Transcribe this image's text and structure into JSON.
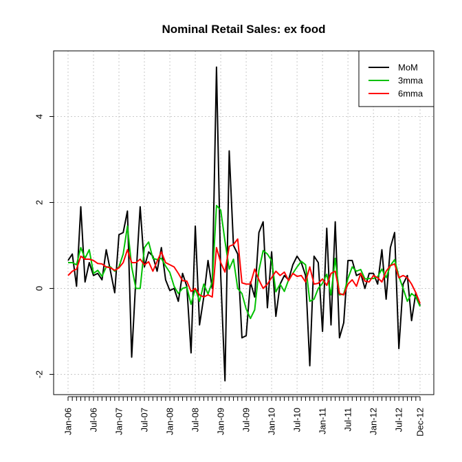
{
  "chart_data": {
    "type": "line",
    "title": "Nominal Retail Sales: ex food",
    "xlabel": "",
    "ylabel": "",
    "ylim": [
      -2.4,
      5.3
    ],
    "yticks": [
      -2,
      0,
      2,
      4
    ],
    "ytick_labels": [
      "-2",
      "0",
      "2",
      "4"
    ],
    "grid": true,
    "legend_position": "top-right",
    "x_tick_labels": [
      {
        "label": "Jan-06",
        "index": 0
      },
      {
        "label": "Jul-06",
        "index": 6
      },
      {
        "label": "Jan-07",
        "index": 12
      },
      {
        "label": "Jul-07",
        "index": 18
      },
      {
        "label": "Jan-08",
        "index": 24
      },
      {
        "label": "Jul-08",
        "index": 30
      },
      {
        "label": "Jan-09",
        "index": 36
      },
      {
        "label": "Jul-09",
        "index": 42
      },
      {
        "label": "Jan-10",
        "index": 48
      },
      {
        "label": "Jul-10",
        "index": 54
      },
      {
        "label": "Jan-11",
        "index": 60
      },
      {
        "label": "Jul-11",
        "index": 66
      },
      {
        "label": "Jan-12",
        "index": 72
      },
      {
        "label": "Jul-12",
        "index": 78
      },
      {
        "label": "Dec-12",
        "index": 83
      }
    ],
    "n_points": 84,
    "series": [
      {
        "name": "MoM",
        "color": "#000000",
        "values": [
          0.65,
          0.8,
          0.05,
          1.9,
          0.15,
          0.6,
          0.3,
          0.35,
          0.2,
          0.9,
          0.4,
          -0.1,
          1.25,
          1.3,
          1.8,
          -1.6,
          0.25,
          1.9,
          0.5,
          0.85,
          0.75,
          0.4,
          0.95,
          0.2,
          -0.05,
          0.0,
          -0.3,
          0.35,
          0.05,
          -1.5,
          1.45,
          -0.85,
          -0.2,
          0.65,
          0.0,
          5.15,
          0.3,
          -2.15,
          3.2,
          1.0,
          0.8,
          -1.15,
          -1.1,
          0.15,
          -0.2,
          1.3,
          1.55,
          -0.45,
          0.85,
          -0.65,
          0.1,
          0.3,
          0.2,
          0.55,
          0.75,
          0.6,
          0.3,
          -1.8,
          0.75,
          0.6,
          -1.0,
          1.4,
          -0.85,
          1.55,
          -1.15,
          -0.8,
          0.65,
          0.65,
          0.3,
          0.35,
          0.0,
          0.35,
          0.35,
          0.1,
          0.9,
          -0.25,
          0.95,
          1.3,
          -1.4,
          0.1,
          0.3,
          -0.75,
          -0.1,
          -0.4
        ]
      },
      {
        "name": "3mma",
        "color": "#00c000",
        "values": [
          0.6,
          0.6,
          0.55,
          0.95,
          0.7,
          0.9,
          0.35,
          0.42,
          0.28,
          0.5,
          0.5,
          0.4,
          0.5,
          0.8,
          1.45,
          0.5,
          0.0,
          0.0,
          0.95,
          1.08,
          0.7,
          0.67,
          0.7,
          0.52,
          0.37,
          0.05,
          -0.12,
          0.0,
          0.03,
          -0.37,
          0.0,
          -0.3,
          0.1,
          -0.13,
          0.15,
          1.93,
          1.82,
          1.1,
          0.45,
          0.68,
          0.0,
          -0.12,
          -0.48,
          -0.7,
          -0.5,
          0.42,
          0.88,
          0.8,
          0.65,
          -0.08,
          0.1,
          -0.07,
          0.2,
          0.35,
          0.5,
          0.63,
          0.55,
          -0.3,
          -0.25,
          0.0,
          0.12,
          0.33,
          -0.15,
          0.7,
          -0.15,
          -0.13,
          0.23,
          0.5,
          0.4,
          0.44,
          0.22,
          0.23,
          0.23,
          0.27,
          0.45,
          0.25,
          0.53,
          0.67,
          0.28,
          0.0,
          -0.3,
          -0.12,
          -0.2,
          -0.42
        ]
      },
      {
        "name": "6mma",
        "color": "#ff0000",
        "values": [
          0.3,
          0.4,
          0.45,
          0.75,
          0.68,
          0.68,
          0.65,
          0.58,
          0.57,
          0.5,
          0.48,
          0.42,
          0.48,
          0.6,
          0.9,
          0.6,
          0.6,
          0.68,
          0.55,
          0.62,
          0.4,
          0.63,
          0.85,
          0.6,
          0.55,
          0.5,
          0.35,
          0.18,
          0.17,
          -0.07,
          0.0,
          -0.15,
          -0.2,
          -0.15,
          -0.2,
          0.95,
          0.6,
          0.38,
          0.98,
          1.02,
          1.15,
          0.13,
          0.1,
          0.1,
          0.45,
          0.2,
          0.0,
          0.1,
          0.25,
          0.4,
          0.3,
          0.38,
          0.18,
          0.35,
          0.28,
          0.3,
          0.15,
          0.5,
          0.1,
          0.12,
          0.22,
          0.07,
          0.35,
          0.4,
          -0.12,
          -0.15,
          0.1,
          0.2,
          0.05,
          0.35,
          0.17,
          0.15,
          0.3,
          0.25,
          0.15,
          0.4,
          0.53,
          0.57,
          0.25,
          0.3,
          0.25,
          0.1,
          -0.1,
          -0.35
        ]
      }
    ]
  }
}
